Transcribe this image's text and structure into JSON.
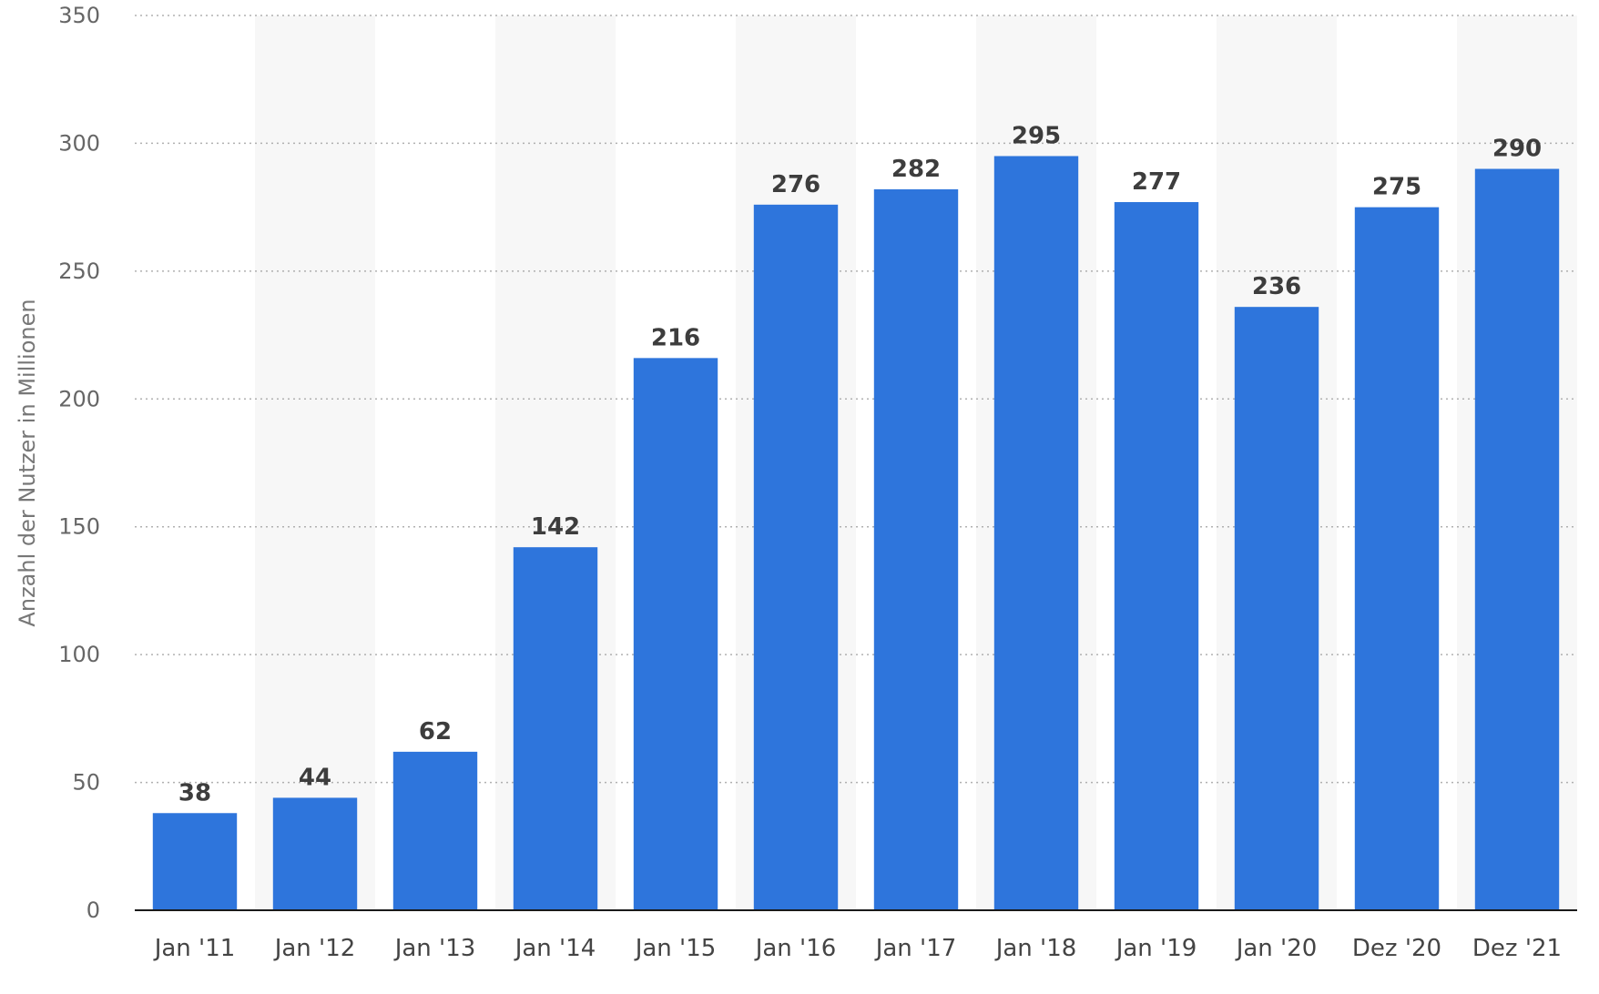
{
  "chart_data": {
    "type": "bar",
    "title": "",
    "xlabel": "",
    "ylabel": "Anzahl der Nutzer in Millionen",
    "ylim": [
      0,
      350
    ],
    "yticks": [
      0,
      50,
      100,
      150,
      200,
      250,
      300,
      350
    ],
    "grid": true,
    "bar_color": "#2e75dc",
    "categories": [
      "Jan '11",
      "Jan '12",
      "Jan '13",
      "Jan '14",
      "Jan '15",
      "Jan '16",
      "Jan '17",
      "Jan '18",
      "Jan '19",
      "Jan '20",
      "Dez '20",
      "Dez '21"
    ],
    "values": [
      38,
      44,
      62,
      142,
      216,
      276,
      282,
      295,
      277,
      236,
      275,
      290
    ]
  }
}
